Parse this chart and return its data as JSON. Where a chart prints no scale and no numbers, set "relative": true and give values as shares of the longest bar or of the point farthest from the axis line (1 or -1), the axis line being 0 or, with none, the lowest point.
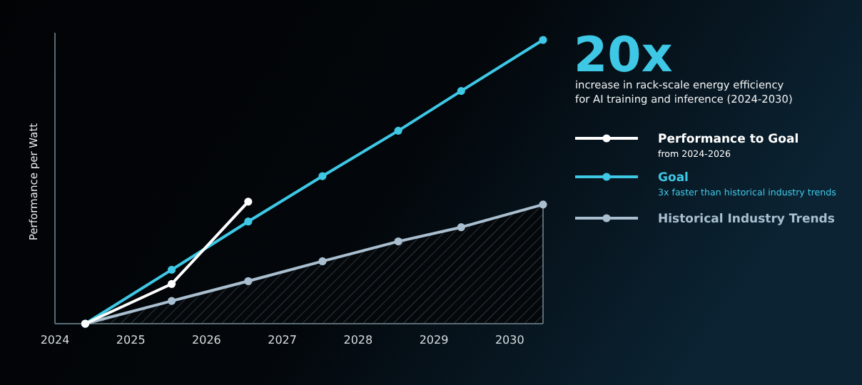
{
  "chart_data": {
    "type": "line",
    "title": "20x",
    "subtitle": "increase in rack-scale energy efficiency for AI training and inference (2024-2030)",
    "ylabel": "Performance per Watt",
    "relative": true,
    "xlim": [
      2024,
      2030.44
    ],
    "xticks": [
      2024,
      2025,
      2026,
      2027,
      2028,
      2029,
      2030
    ],
    "grid": false,
    "legend": "right",
    "marker": "circle",
    "line_style": "solid",
    "annotations": [
      "from 2024-2026",
      "3x faster than historical industry trends"
    ],
    "series": [
      {
        "name": "Performance to Goal",
        "color": "#ffffff",
        "x": [
          2024.4,
          2025.54,
          2026.55
        ],
        "values": [
          0,
          0.14,
          0.43
        ]
      },
      {
        "name": "Goal",
        "color": "#3ec8e6",
        "x": [
          2024.4,
          2025.54,
          2026.55,
          2027.53,
          2028.53,
          2029.36,
          2030.44
        ],
        "values": [
          0,
          0.19,
          0.36,
          0.52,
          0.68,
          0.82,
          1
        ]
      },
      {
        "name": "Historical Industry Trends",
        "type": "area",
        "color": "#a9bfd0",
        "x": [
          2024.4,
          2025.54,
          2026.55,
          2027.53,
          2028.53,
          2029.36,
          2030.44
        ],
        "values": [
          0,
          0.08,
          0.15,
          0.22,
          0.29,
          0.34,
          0.42
        ]
      }
    ]
  }
}
